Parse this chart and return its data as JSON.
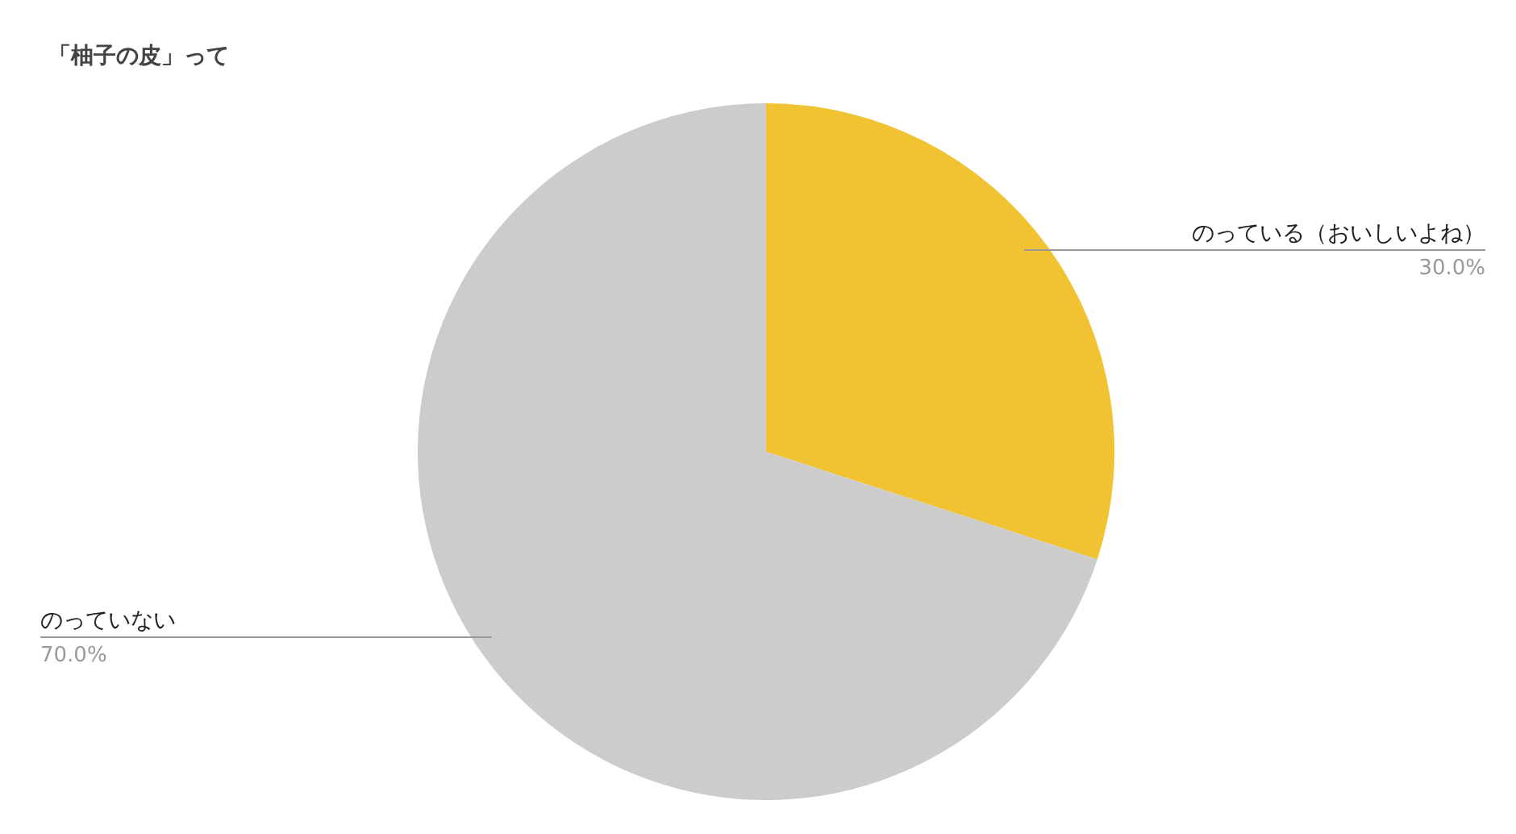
{
  "chart_data": {
    "type": "pie",
    "title": "「柚子の皮」って",
    "categories": [
      "のっている（おいしいよね）",
      "のっていない"
    ],
    "values": [
      30,
      70
    ],
    "colors": [
      "#f1c232",
      "#cccccc"
    ],
    "value_labels": [
      "30.0%",
      "70.0%"
    ],
    "legend": false
  }
}
